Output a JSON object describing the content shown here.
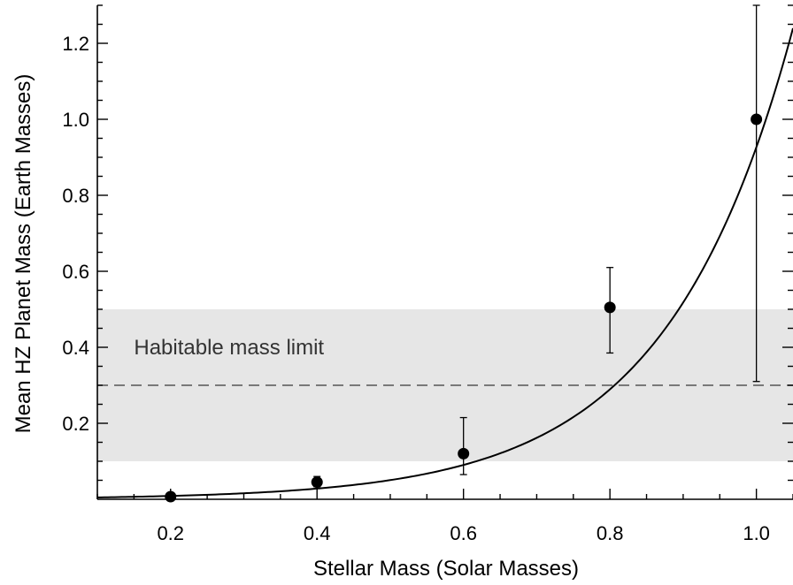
{
  "chart_data": {
    "type": "scatter",
    "xlabel": "Stellar Mass (Solar Masses)",
    "ylabel": "Mean HZ Planet Mass (Earth Masses)",
    "xlim": [
      0.1,
      1.05
    ],
    "ylim": [
      0.0,
      1.3
    ],
    "xticks": [
      "0.2",
      "0.4",
      "0.6",
      "0.8",
      "1.0"
    ],
    "yticks": [
      "0.2",
      "0.4",
      "0.6",
      "0.8",
      "1.0",
      "1.2"
    ],
    "grid": false,
    "series": [
      {
        "points": [
          {
            "x": 0.2,
            "y": 0.007,
            "err_low": 0.003,
            "err_high": 0.003
          },
          {
            "x": 0.4,
            "y": 0.045,
            "err_low": 0.012,
            "err_high": 0.015
          },
          {
            "x": 0.6,
            "y": 0.12,
            "err_low": 0.055,
            "err_high": 0.095
          },
          {
            "x": 0.8,
            "y": 0.505,
            "err_low": 0.12,
            "err_high": 0.105
          },
          {
            "x": 1.0,
            "y": 1.0,
            "err_low": 0.69,
            "err_high": 0.3
          }
        ]
      }
    ],
    "fit_curve": {
      "form": "exponential",
      "a": 0.00275,
      "b": 5.82
    },
    "shaded_band": {
      "y_range": [
        0.1,
        0.5
      ],
      "color": "#e6e6e6"
    },
    "reference_line": {
      "y": 0.3,
      "style": "dashed"
    },
    "annotations": [
      {
        "text": "Habitable mass limit",
        "x": 0.15,
        "y": 0.4
      }
    ]
  }
}
